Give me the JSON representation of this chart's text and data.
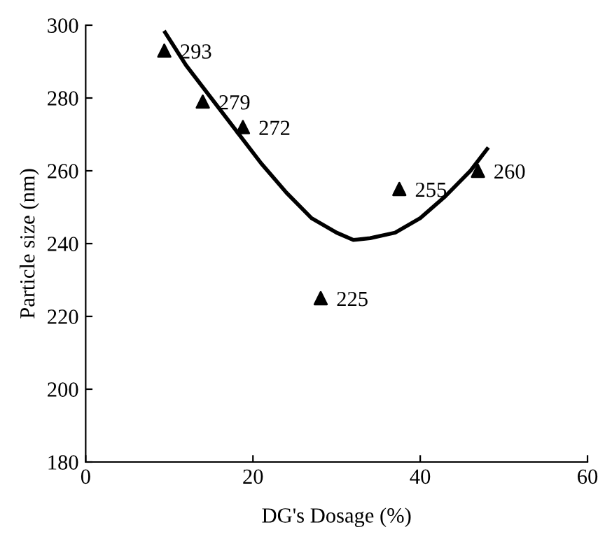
{
  "chart_data": {
    "type": "scatter",
    "xlabel": "DG's Dosage (%)",
    "ylabel": "Particle size (nm)",
    "xlim": [
      0,
      60
    ],
    "xticks": [
      0,
      20,
      40,
      60
    ],
    "ylim": [
      180,
      300
    ],
    "yticks": [
      180,
      200,
      220,
      240,
      260,
      280,
      300
    ],
    "marker": "triangle",
    "series": [
      {
        "color": "#000000",
        "x": [
          9.4,
          14,
          18.8,
          28.1,
          37.5,
          46.9
        ],
        "values": [
          293,
          279,
          272,
          225,
          255,
          260
        ],
        "value_labels": [
          "293",
          "279",
          "272",
          "225",
          "255",
          "260"
        ]
      },
      {
        "type": "line",
        "color": "#000000",
        "line_style": "solid",
        "marker": "none",
        "x": [
          9.5,
          12,
          15,
          18,
          21,
          24,
          27,
          30,
          32,
          34,
          37,
          40,
          43,
          46,
          48
        ],
        "values": [
          298,
          289,
          280,
          271,
          262,
          254,
          247,
          243,
          241,
          241.5,
          243,
          247,
          253,
          260,
          266
        ]
      }
    ]
  }
}
